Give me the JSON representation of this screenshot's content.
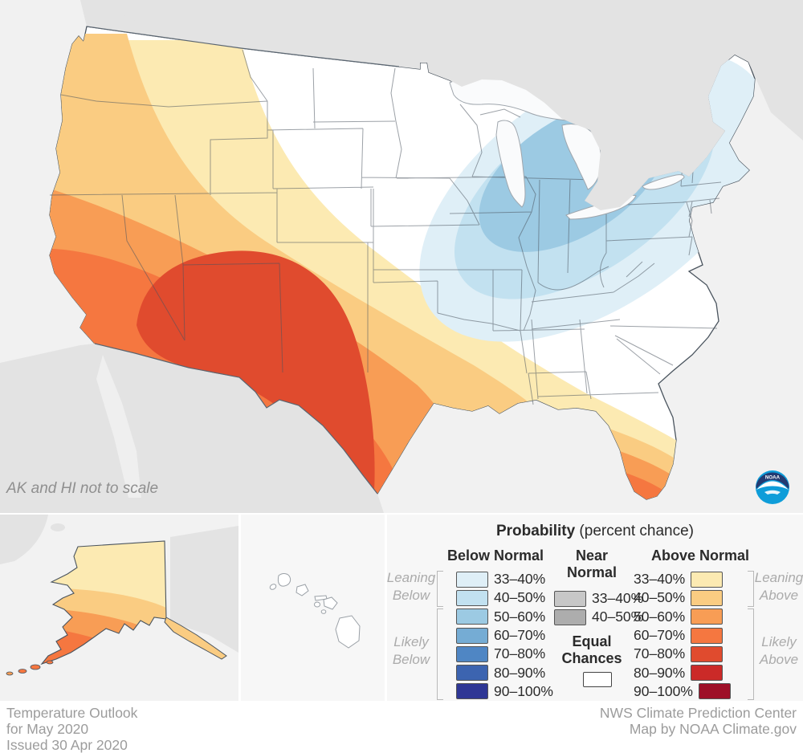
{
  "map": {
    "note": "AK and HI not to scale",
    "noaa_logo_text": "NOAA"
  },
  "legend": {
    "title": "Probability",
    "title_suffix": " (percent chance)",
    "below": {
      "header": "Below Normal",
      "rows": [
        {
          "range": "33–40%",
          "color": "#DFEFF7"
        },
        {
          "range": "40–50%",
          "color": "#C2E1F0"
        },
        {
          "range": "50–60%",
          "color": "#9CCAE3"
        },
        {
          "range": "60–70%",
          "color": "#75ACD4"
        },
        {
          "range": "70–80%",
          "color": "#4F86C4"
        },
        {
          "range": "80–90%",
          "color": "#3C64B0"
        },
        {
          "range": "90–100%",
          "color": "#2F3795"
        }
      ]
    },
    "near": {
      "header_line1": "Near",
      "header_line2": "Normal",
      "rows": [
        {
          "range": "33–40%",
          "color": "#C7C7C7"
        },
        {
          "range": "40–50%",
          "color": "#ADADAD"
        }
      ]
    },
    "above": {
      "header": "Above Normal",
      "rows": [
        {
          "range": "33–40%",
          "color": "#FCEAB2"
        },
        {
          "range": "40–50%",
          "color": "#FACC82"
        },
        {
          "range": "50–60%",
          "color": "#F89D55"
        },
        {
          "range": "60–70%",
          "color": "#F57740"
        },
        {
          "range": "70–80%",
          "color": "#E04B2E"
        },
        {
          "range": "80–90%",
          "color": "#CB2A28"
        },
        {
          "range": "90–100%",
          "color": "#9E1028"
        }
      ]
    },
    "equal_chances": {
      "line1": "Equal",
      "line2": "Chances",
      "color": "#FFFFFF"
    },
    "groups": {
      "leaning_below_1": "Leaning",
      "leaning_below_2": "Below",
      "likely_below_1": "Likely",
      "likely_below_2": "Below",
      "leaning_above_1": "Leaning",
      "leaning_above_2": "Above",
      "likely_above_1": "Likely",
      "likely_above_2": "Above"
    }
  },
  "footer": {
    "left_line1": "Temperature Outlook",
    "left_line2": "for May 2020",
    "left_line3": "Issued 30 Apr 2020",
    "right_line1": "NWS Climate Prediction Center",
    "right_line2": "Map by NOAA Climate.gov"
  }
}
